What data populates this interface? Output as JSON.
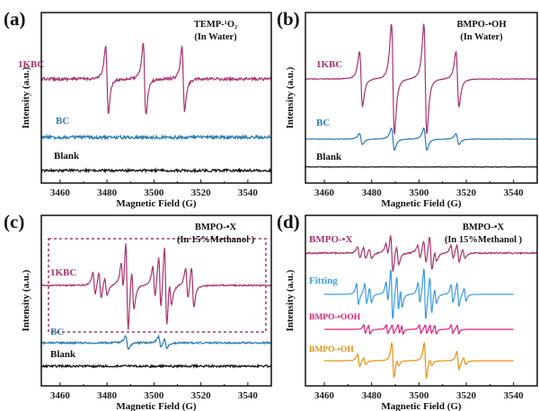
{
  "chart_data": [
    {
      "type": "line",
      "panel_label": "(a)",
      "annotation": [
        "TEMP-¹O₂",
        "(In Water)"
      ],
      "xlabel": "Magnetic Field (G)",
      "ylabel": "Intensity (a.u.)",
      "xlim": [
        3452,
        3550
      ],
      "xticks": [
        3460,
        3480,
        3500,
        3520,
        3540
      ],
      "grid": false,
      "series": [
        {
          "name": "1KBC",
          "color": "#a8336e",
          "linewidth_G": 1.0,
          "noise": 0.08,
          "lines": [
            [
              3480,
              1.0
            ],
            [
              3496,
              1.05
            ],
            [
              3512.5,
              0.95
            ]
          ]
        },
        {
          "name": "BC",
          "color": "#2a7ab0",
          "linewidth_G": 1.0,
          "noise": 0.09,
          "lines": []
        },
        {
          "name": "Blank",
          "color": "#111111",
          "linewidth_G": 1.0,
          "noise": 0.07,
          "lines": []
        }
      ]
    },
    {
      "type": "line",
      "panel_label": "(b)",
      "annotation": [
        "BMPO-•OH",
        "(In Water)"
      ],
      "xlabel": "Magnetic Field (G)",
      "ylabel": "Intensity (a.u.)",
      "xlim": [
        3452,
        3550
      ],
      "xticks": [
        3460,
        3480,
        3500,
        3520,
        3540
      ],
      "grid": false,
      "series": [
        {
          "name": "1KBC",
          "color": "#a8336e",
          "linewidth_G": 1.1,
          "noise": 0.02,
          "lines": [
            [
              3475.5,
              0.5
            ],
            [
              3489,
              1.0
            ],
            [
              3502.7,
              1.0
            ],
            [
              3516.3,
              0.5
            ]
          ]
        },
        {
          "name": "BC",
          "color": "#2a7ab0",
          "linewidth_G": 1.1,
          "noise": 0.01,
          "lines": [
            [
              3475.5,
              0.1
            ],
            [
              3489,
              0.2
            ],
            [
              3502.7,
              0.2
            ],
            [
              3516.3,
              0.1
            ]
          ]
        },
        {
          "name": "Blank",
          "color": "#111111",
          "linewidth_G": 1.0,
          "noise": 0.01,
          "lines": []
        }
      ]
    },
    {
      "type": "line",
      "panel_label": "(c)",
      "annotation": [
        "BMPO-•X",
        "(In 15%Methanol )"
      ],
      "xlabel": "Magnetic Field (G)",
      "ylabel": "Intensity (a.u.)",
      "xlim": [
        3452,
        3550
      ],
      "xticks": [
        3460,
        3480,
        3500,
        3520,
        3540
      ],
      "grid": false,
      "series": [
        {
          "name": "1KBC",
          "color": "#a8336e",
          "linewidth_G": 0.9,
          "noise": 0.04,
          "lines": [
            [
              3474.5,
              0.25
            ],
            [
              3477,
              0.3
            ],
            [
              3479.5,
              0.2
            ],
            [
              3486.5,
              0.35
            ],
            [
              3488.5,
              1.0
            ],
            [
              3491,
              0.45
            ],
            [
              3500,
              0.35
            ],
            [
              3502.5,
              0.6
            ],
            [
              3505,
              0.9
            ],
            [
              3507,
              0.3
            ],
            [
              3514,
              0.35
            ],
            [
              3516.5,
              0.45
            ]
          ]
        },
        {
          "name": "BC",
          "color": "#2a7ab0",
          "linewidth_G": 1.0,
          "noise": 0.05,
          "lines": [
            [
              3488.5,
              0.15
            ],
            [
              3502.5,
              0.12
            ],
            [
              3505,
              0.1
            ]
          ]
        },
        {
          "name": "Blank",
          "color": "#111111",
          "linewidth_G": 1.0,
          "noise": 0.06,
          "lines": []
        }
      ]
    },
    {
      "type": "line",
      "panel_label": "(d)",
      "annotation": [
        "BMPO-•X",
        "(In 15%Methanol )"
      ],
      "xlabel": "Magnetic Field (G)",
      "ylabel": "Intensity (a.u.)",
      "xlim": [
        3452,
        3550
      ],
      "xticks": [
        3460,
        3480,
        3500,
        3520,
        3540
      ],
      "grid": false,
      "series": [
        {
          "name": "BMPO-•X",
          "color": "#a8336e",
          "linewidth_G": 0.9,
          "noise": 0.04,
          "range": [
            3452,
            3550
          ],
          "lines": [
            [
              3474.5,
              0.3
            ],
            [
              3477,
              0.3
            ],
            [
              3479.5,
              0.25
            ],
            [
              3486.5,
              0.35
            ],
            [
              3488.5,
              1.0
            ],
            [
              3491,
              0.5
            ],
            [
              3500,
              0.35
            ],
            [
              3502.5,
              0.6
            ],
            [
              3505,
              0.9
            ],
            [
              3507,
              0.3
            ],
            [
              3514,
              0.35
            ],
            [
              3516.5,
              0.45
            ],
            [
              3519,
              0.25
            ]
          ]
        },
        {
          "name": "Fitting",
          "color": "#3b9be0",
          "linewidth_G": 0.7,
          "noise": 0,
          "range": [
            3460,
            3540
          ],
          "lines": [
            [
              3474,
              0.4
            ],
            [
              3477.5,
              0.4
            ],
            [
              3479.5,
              0.3
            ],
            [
              3486.5,
              0.4
            ],
            [
              3488.5,
              1.0
            ],
            [
              3491,
              0.7
            ],
            [
              3492.5,
              0.4
            ],
            [
              3500,
              0.4
            ],
            [
              3502.5,
              1.0
            ],
            [
              3505,
              0.7
            ],
            [
              3507,
              0.3
            ],
            [
              3514,
              0.35
            ],
            [
              3516.5,
              0.45
            ],
            [
              3519.5,
              0.25
            ]
          ]
        },
        {
          "name": "BMPO-•OOH",
          "color": "#e0207a",
          "linewidth_G": 0.6,
          "noise": 0,
          "range": [
            3460,
            3540
          ],
          "lines": [
            [
              3477,
              0.5
            ],
            [
              3479,
              0.5
            ],
            [
              3486.5,
              0.5
            ],
            [
              3489,
              0.5
            ],
            [
              3491.5,
              0.5
            ],
            [
              3493,
              0.5
            ],
            [
              3500.5,
              0.5
            ],
            [
              3503,
              0.5
            ],
            [
              3505,
              0.5
            ],
            [
              3507,
              0.5
            ],
            [
              3514,
              0.5
            ],
            [
              3516.5,
              0.5
            ]
          ]
        },
        {
          "name": "BMPO-•OH",
          "color": "#e8900e",
          "linewidth_G": 0.8,
          "noise": 0,
          "range": [
            3460,
            3540
          ],
          "lines": [
            [
              3474.5,
              0.35
            ],
            [
              3477,
              0.2
            ],
            [
              3489,
              1.0
            ],
            [
              3491,
              0.2
            ],
            [
              3502.7,
              1.0
            ],
            [
              3505,
              0.2
            ],
            [
              3516.5,
              0.5
            ],
            [
              3519.3,
              0.2
            ]
          ]
        }
      ]
    }
  ]
}
